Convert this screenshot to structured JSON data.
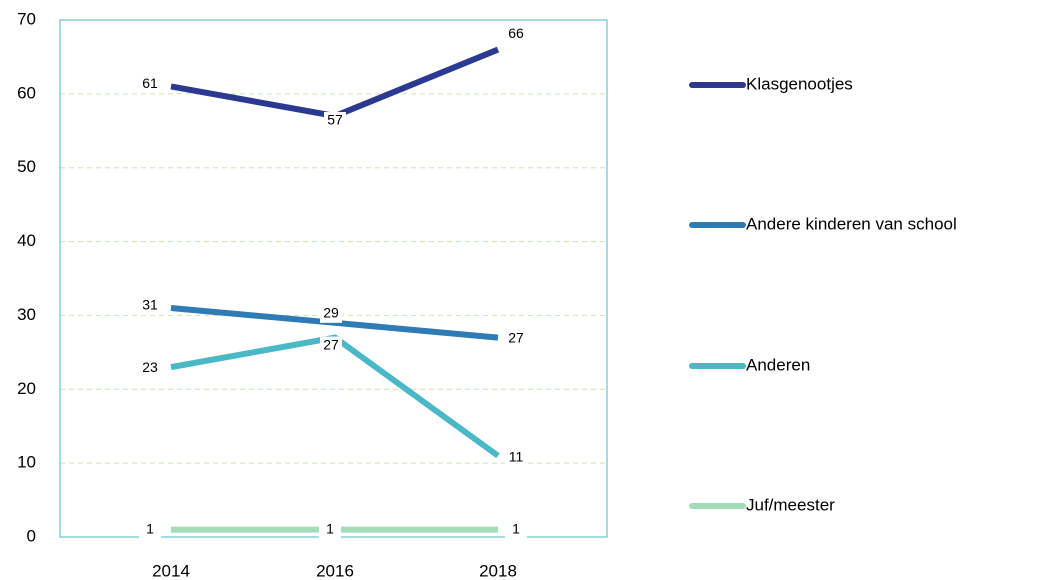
{
  "chart_data": {
    "type": "line",
    "categories": [
      "2014",
      "2016",
      "2018"
    ],
    "series": [
      {
        "name": "Klasgenootjes",
        "color": "#2b3990",
        "values": [
          61,
          57,
          66
        ]
      },
      {
        "name": "Andere kinderen van school",
        "color": "#2f7bb6",
        "values": [
          31,
          29,
          27
        ]
      },
      {
        "name": "Anderen",
        "color": "#4bb8c6",
        "values": [
          23,
          27,
          11
        ]
      },
      {
        "name": "Juf/meester",
        "color": "#a3dcb8",
        "values": [
          1,
          1,
          1
        ]
      }
    ],
    "ylim": [
      0,
      70
    ],
    "yticks": [
      0,
      10,
      20,
      30,
      40,
      50,
      60,
      70
    ],
    "grid": true,
    "legend": "right",
    "data_labels": true
  }
}
